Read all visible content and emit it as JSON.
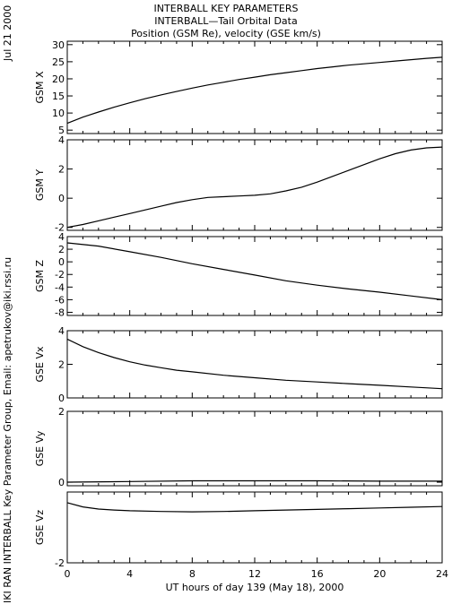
{
  "header": {
    "line1": "INTERBALL KEY PARAMETERS",
    "line2": "INTERBALL—Tail Orbital Data",
    "line3": "Position (GSM Re), velocity (GSE km/s)"
  },
  "side_date": "Jul 21 2000",
  "side_credit": "IKI RAN INTERBALL Key Parameter Group, Email: apetrukov@iki.rssi.ru",
  "chart_data": {
    "type": "line",
    "xlabel": "UT hours of day 139 (May 18), 2000",
    "xlim": [
      0,
      24
    ],
    "xticks": [
      0,
      4,
      8,
      12,
      16,
      20,
      24
    ],
    "panels": [
      {
        "ylabel": "GSM X",
        "ylim": [
          4,
          31
        ],
        "yticks": [
          5,
          10,
          15,
          20,
          25,
          30
        ],
        "x": [
          0,
          1,
          2,
          3,
          4,
          5,
          6,
          7,
          8,
          9,
          10,
          11,
          12,
          13,
          14,
          15,
          16,
          17,
          18,
          19,
          20,
          21,
          22,
          23,
          24
        ],
        "y": [
          7,
          8.8,
          10.3,
          11.7,
          13,
          14.2,
          15.3,
          16.3,
          17.3,
          18.2,
          19,
          19.8,
          20.5,
          21.2,
          21.8,
          22.4,
          23,
          23.5,
          24,
          24.4,
          24.8,
          25.2,
          25.6,
          26,
          26.3
        ]
      },
      {
        "ylabel": "GSM Y",
        "ylim": [
          -2.2,
          4
        ],
        "yticks": [
          -2,
          0,
          2,
          4
        ],
        "x": [
          0,
          1,
          2,
          3,
          4,
          5,
          6,
          7,
          8,
          9,
          10,
          11,
          12,
          13,
          14,
          15,
          16,
          17,
          18,
          19,
          20,
          21,
          22,
          23,
          24
        ],
        "y": [
          -2,
          -1.8,
          -1.55,
          -1.3,
          -1.05,
          -0.8,
          -0.55,
          -0.3,
          -0.1,
          0.05,
          0.1,
          0.15,
          0.2,
          0.3,
          0.5,
          0.75,
          1.1,
          1.5,
          1.9,
          2.3,
          2.7,
          3.05,
          3.3,
          3.45,
          3.5
        ]
      },
      {
        "ylabel": "GSM Z",
        "ylim": [
          -8.5,
          4
        ],
        "yticks": [
          -8,
          -6,
          -4,
          -2,
          0,
          2,
          4
        ],
        "x": [
          0,
          2,
          4,
          6,
          8,
          10,
          12,
          14,
          16,
          18,
          20,
          22,
          24
        ],
        "y": [
          3,
          2.5,
          1.6,
          0.7,
          -0.3,
          -1.2,
          -2.1,
          -3,
          -3.7,
          -4.3,
          -4.8,
          -5.4,
          -6
        ]
      },
      {
        "ylabel": "GSE Vx",
        "ylim": [
          0,
          4
        ],
        "yticks": [
          0,
          2,
          4
        ],
        "x": [
          0,
          1,
          2,
          3,
          4,
          5,
          6,
          7,
          8,
          10,
          12,
          14,
          16,
          18,
          20,
          22,
          24
        ],
        "y": [
          3.5,
          3.05,
          2.7,
          2.4,
          2.15,
          1.95,
          1.8,
          1.65,
          1.55,
          1.35,
          1.2,
          1.05,
          0.95,
          0.85,
          0.75,
          0.65,
          0.55
        ]
      },
      {
        "ylabel": "GSE Vy",
        "ylim": [
          -0.1,
          2
        ],
        "yticks": [
          0,
          2
        ],
        "x": [
          0,
          4,
          8,
          12,
          16,
          20,
          24
        ],
        "y": [
          0,
          0.02,
          0.04,
          0.04,
          0.04,
          0.03,
          0.03
        ]
      },
      {
        "ylabel": "GSE Vz",
        "ylim": [
          -2,
          0
        ],
        "yticks": [
          -2
        ],
        "x": [
          0,
          1,
          2,
          3,
          4,
          6,
          8,
          10,
          12,
          14,
          16,
          18,
          20,
          22,
          24
        ],
        "y": [
          -0.3,
          -0.42,
          -0.48,
          -0.51,
          -0.53,
          -0.55,
          -0.56,
          -0.55,
          -0.53,
          -0.51,
          -0.49,
          -0.47,
          -0.45,
          -0.43,
          -0.41
        ]
      }
    ]
  }
}
